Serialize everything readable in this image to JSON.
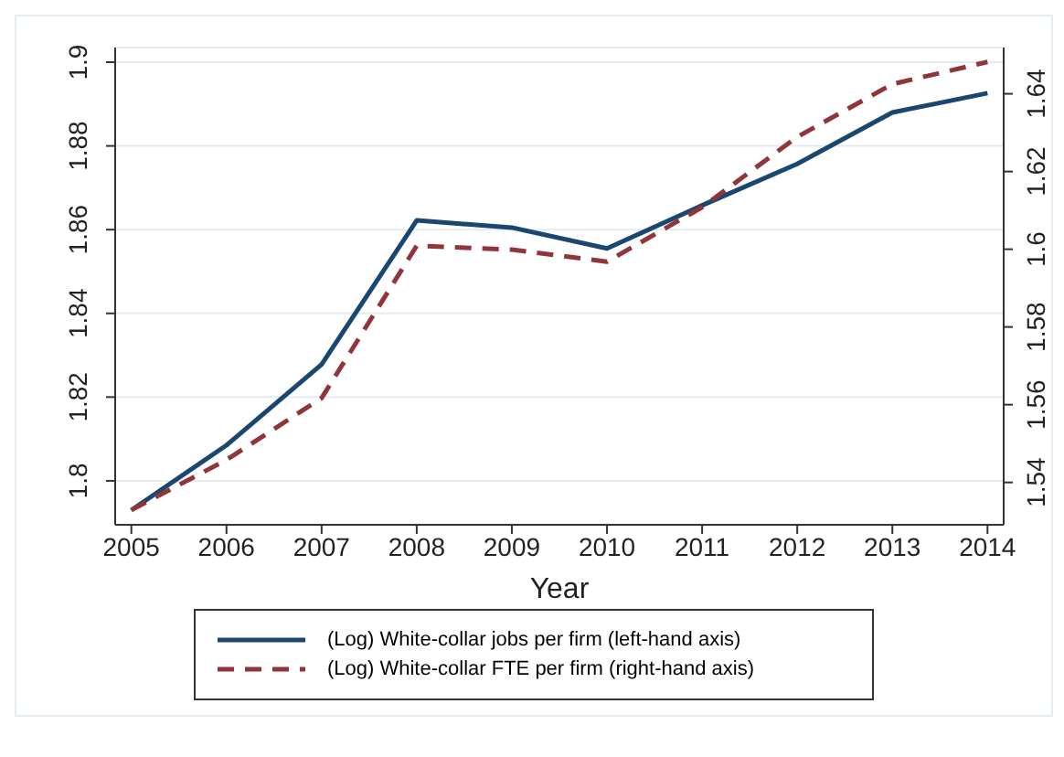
{
  "chart_data": {
    "type": "line",
    "xlabel": "Year",
    "x": [
      2005,
      2006,
      2007,
      2008,
      2009,
      2010,
      2011,
      2012,
      2013,
      2014
    ],
    "xlim": [
      2004.83,
      2014.17
    ],
    "xticks": [
      2005,
      2006,
      2007,
      2008,
      2009,
      2010,
      2011,
      2012,
      2013,
      2014
    ],
    "ylim": [
      1.7895,
      1.9035
    ],
    "yticks": [
      1.8,
      1.82,
      1.84,
      1.86,
      1.88,
      1.9
    ],
    "y2lim": [
      1.5291,
      1.6519
    ],
    "y2ticks": [
      1.54,
      1.56,
      1.58,
      1.6,
      1.62,
      1.64
    ],
    "grid": "y",
    "legend": "bottom",
    "marker": "none",
    "series": [
      {
        "name": "(Log) White-collar jobs per firm (left-hand axis)",
        "color": "#1a476f",
        "line_style": "solid",
        "values": [
          1.793,
          1.8085,
          1.8278,
          1.8622,
          1.8605,
          1.8555,
          1.8658,
          1.8757,
          1.888,
          1.8926
        ]
      },
      {
        "name": "(Log) White-collar FTE per firm (right-hand axis)",
        "color": "#90353b",
        "line_style": "dashed",
        "axis": "y2",
        "values": [
          1.5329,
          1.5458,
          1.5617,
          1.6009,
          1.5999,
          1.5968,
          1.6108,
          1.6289,
          1.6425,
          1.6482
        ]
      }
    ]
  }
}
